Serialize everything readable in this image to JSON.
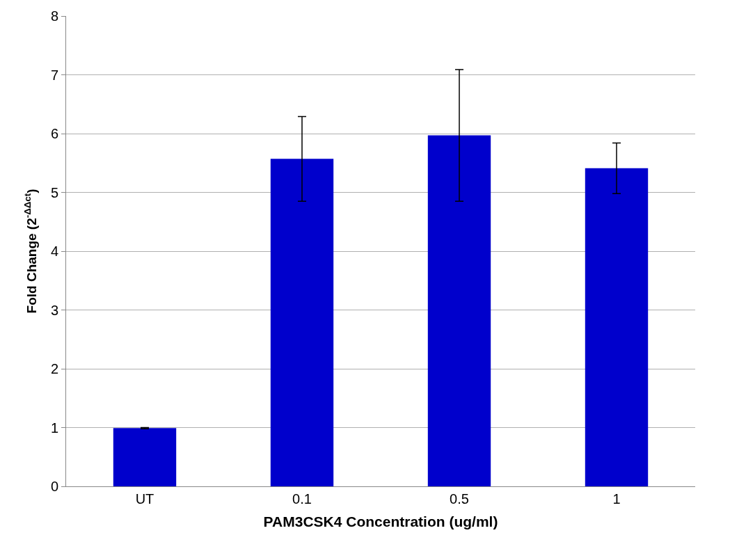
{
  "chart_data": {
    "type": "bar",
    "xlabel": "PAM3CSK4 Concentration (ug/ml)",
    "ylabel": "Fold Change (2$^{-ΔΔct}$)",
    "categories": [
      "UT",
      "0.1",
      "0.5",
      "1"
    ],
    "values": [
      0.99,
      5.57,
      5.97,
      5.41
    ],
    "errors": [
      0.01,
      0.72,
      1.12,
      0.43
    ],
    "color": "#0000cc",
    "ylim": [
      0,
      8
    ],
    "yticks": [
      0,
      1,
      2,
      3,
      4,
      5,
      6,
      7,
      8
    ],
    "grid": "y"
  }
}
